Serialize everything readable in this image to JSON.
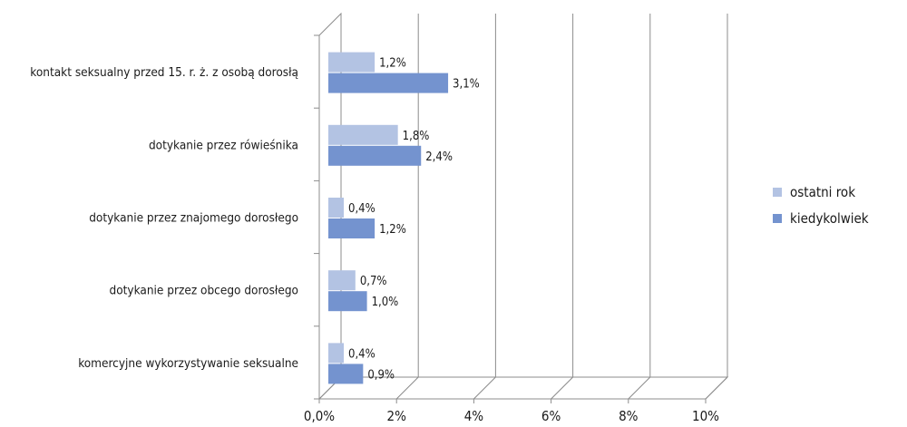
{
  "chart_data": {
    "type": "bar",
    "orientation": "horizontal",
    "categories": [
      "kontakt seksualny przed 15. r. ż. z osobą dorosłą",
      "dotykanie przez rówieśnika",
      "dotykanie przez znajomego dorosłego",
      "dotykanie przez obcego dorosłego",
      "komercyjne wykorzystywanie seksualne"
    ],
    "series": [
      {
        "name": "ostatni rok",
        "values": [
          1.2,
          1.8,
          0.4,
          0.7,
          0.4
        ],
        "labels": [
          "1,2%",
          "1,8%",
          "0,4%",
          "0,7%",
          "0,4%"
        ],
        "color": "#b3c3e3"
      },
      {
        "name": "kiedykolwiek",
        "values": [
          3.1,
          2.4,
          1.2,
          1.0,
          0.9
        ],
        "labels": [
          "3,1%",
          "2,4%",
          "1,2%",
          "1,0%",
          "0,9%"
        ],
        "color": "#7493cf"
      }
    ],
    "xlim": [
      0,
      10
    ],
    "x_ticks": [
      0,
      2,
      4,
      6,
      8,
      10
    ],
    "x_tick_labels": [
      "0,0%",
      "2%",
      "4%",
      "6%",
      "8%",
      "10%"
    ],
    "grid": true,
    "style": "3d-walls",
    "legend_position": "right",
    "title": "",
    "xlabel": "",
    "ylabel": ""
  }
}
